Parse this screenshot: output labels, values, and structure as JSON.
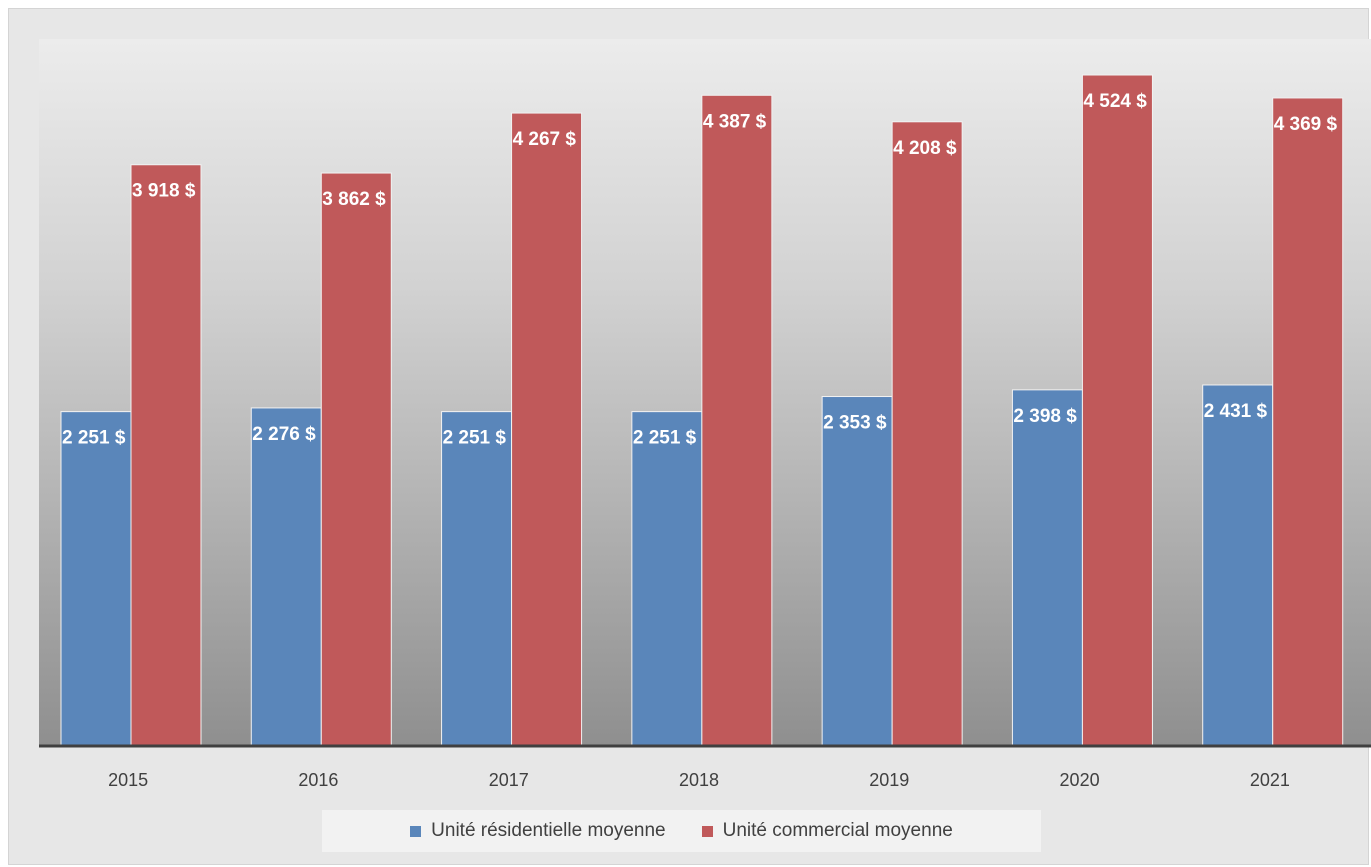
{
  "chart_data": {
    "type": "bar",
    "title": "",
    "xlabel": "",
    "ylabel": "",
    "categories": [
      "2015",
      "2016",
      "2017",
      "2018",
      "2019",
      "2020",
      "2021"
    ],
    "series": [
      {
        "name": "Unité résidentielle moyenne",
        "color": "#5a86ba",
        "values": [
          2251,
          2276,
          2251,
          2251,
          2353,
          2398,
          2431
        ],
        "labels": [
          "2 251  $",
          "2 276  $",
          "2 251  $",
          "2 251  $",
          "2 353  $",
          "2 398  $",
          "2 431  $"
        ]
      },
      {
        "name": "Unité commercial moyenne",
        "color": "#c0595a",
        "values": [
          3918,
          3862,
          4267,
          4387,
          4208,
          4524,
          4369
        ],
        "labels": [
          "3 918  $",
          "3 862  $",
          "4 267  $",
          "4 387  $",
          "4 208  $",
          "4 524  $",
          "4 369  $"
        ]
      }
    ],
    "ylim": [
      0,
      4600
    ],
    "grid": false,
    "legend_position": "bottom"
  }
}
